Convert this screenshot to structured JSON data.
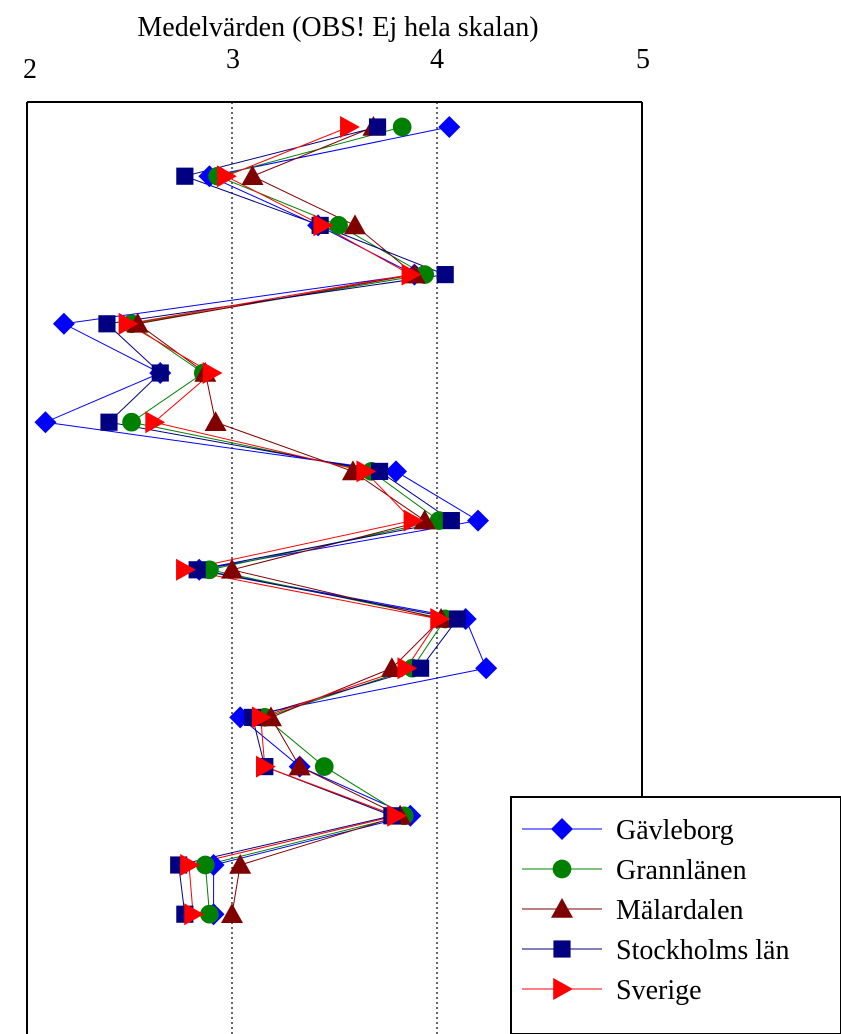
{
  "chart_data": {
    "type": "line",
    "orientation": "horizontal",
    "title": "Medelvärden (OBS! Ej hela skalan)",
    "xlim": [
      2,
      5
    ],
    "x_ticks": [
      "2",
      "3",
      "4",
      "5"
    ],
    "grid_x": [
      3,
      4
    ],
    "grid": "vertical dotted lines at 3 and 4",
    "legend_position": "bottom-right",
    "series": [
      {
        "name": "Gävleborg",
        "color": "#0000ff",
        "marker": "diamond",
        "values": [
          4.06,
          2.89,
          3.42,
          3.89,
          2.18,
          2.65,
          2.09,
          3.8,
          4.2,
          2.84,
          4.14,
          4.24,
          3.04,
          3.33,
          3.87,
          2.91,
          2.91
        ]
      },
      {
        "name": "Grannlänen",
        "color": "#008000",
        "marker": "circle",
        "values": [
          3.83,
          2.93,
          3.52,
          3.94,
          2.51,
          2.86,
          2.51,
          3.68,
          4.01,
          2.89,
          4.04,
          3.88,
          3.16,
          3.45,
          3.84,
          2.87,
          2.89
        ]
      },
      {
        "name": "Mälardalen",
        "color": "#800000",
        "marker": "triangle-up",
        "values": [
          3.69,
          3.1,
          3.6,
          3.89,
          2.54,
          2.87,
          2.92,
          3.59,
          3.94,
          3.0,
          4.02,
          3.78,
          3.19,
          3.33,
          3.82,
          3.04,
          3.0
        ]
      },
      {
        "name": "Stockholms län",
        "color": "#000080",
        "marker": "square",
        "values": [
          3.71,
          2.77,
          3.43,
          4.04,
          2.39,
          2.65,
          2.4,
          3.72,
          4.07,
          2.83,
          4.1,
          3.92,
          3.1,
          3.16,
          3.78,
          2.74,
          2.77
        ]
      },
      {
        "name": "Sverige",
        "color": "#ff0000",
        "marker": "triangle-right",
        "values": [
          3.57,
          2.97,
          3.44,
          3.87,
          2.49,
          2.9,
          2.62,
          3.65,
          3.88,
          2.77,
          4.01,
          3.85,
          3.14,
          3.16,
          3.8,
          2.79,
          2.81
        ]
      }
    ]
  }
}
